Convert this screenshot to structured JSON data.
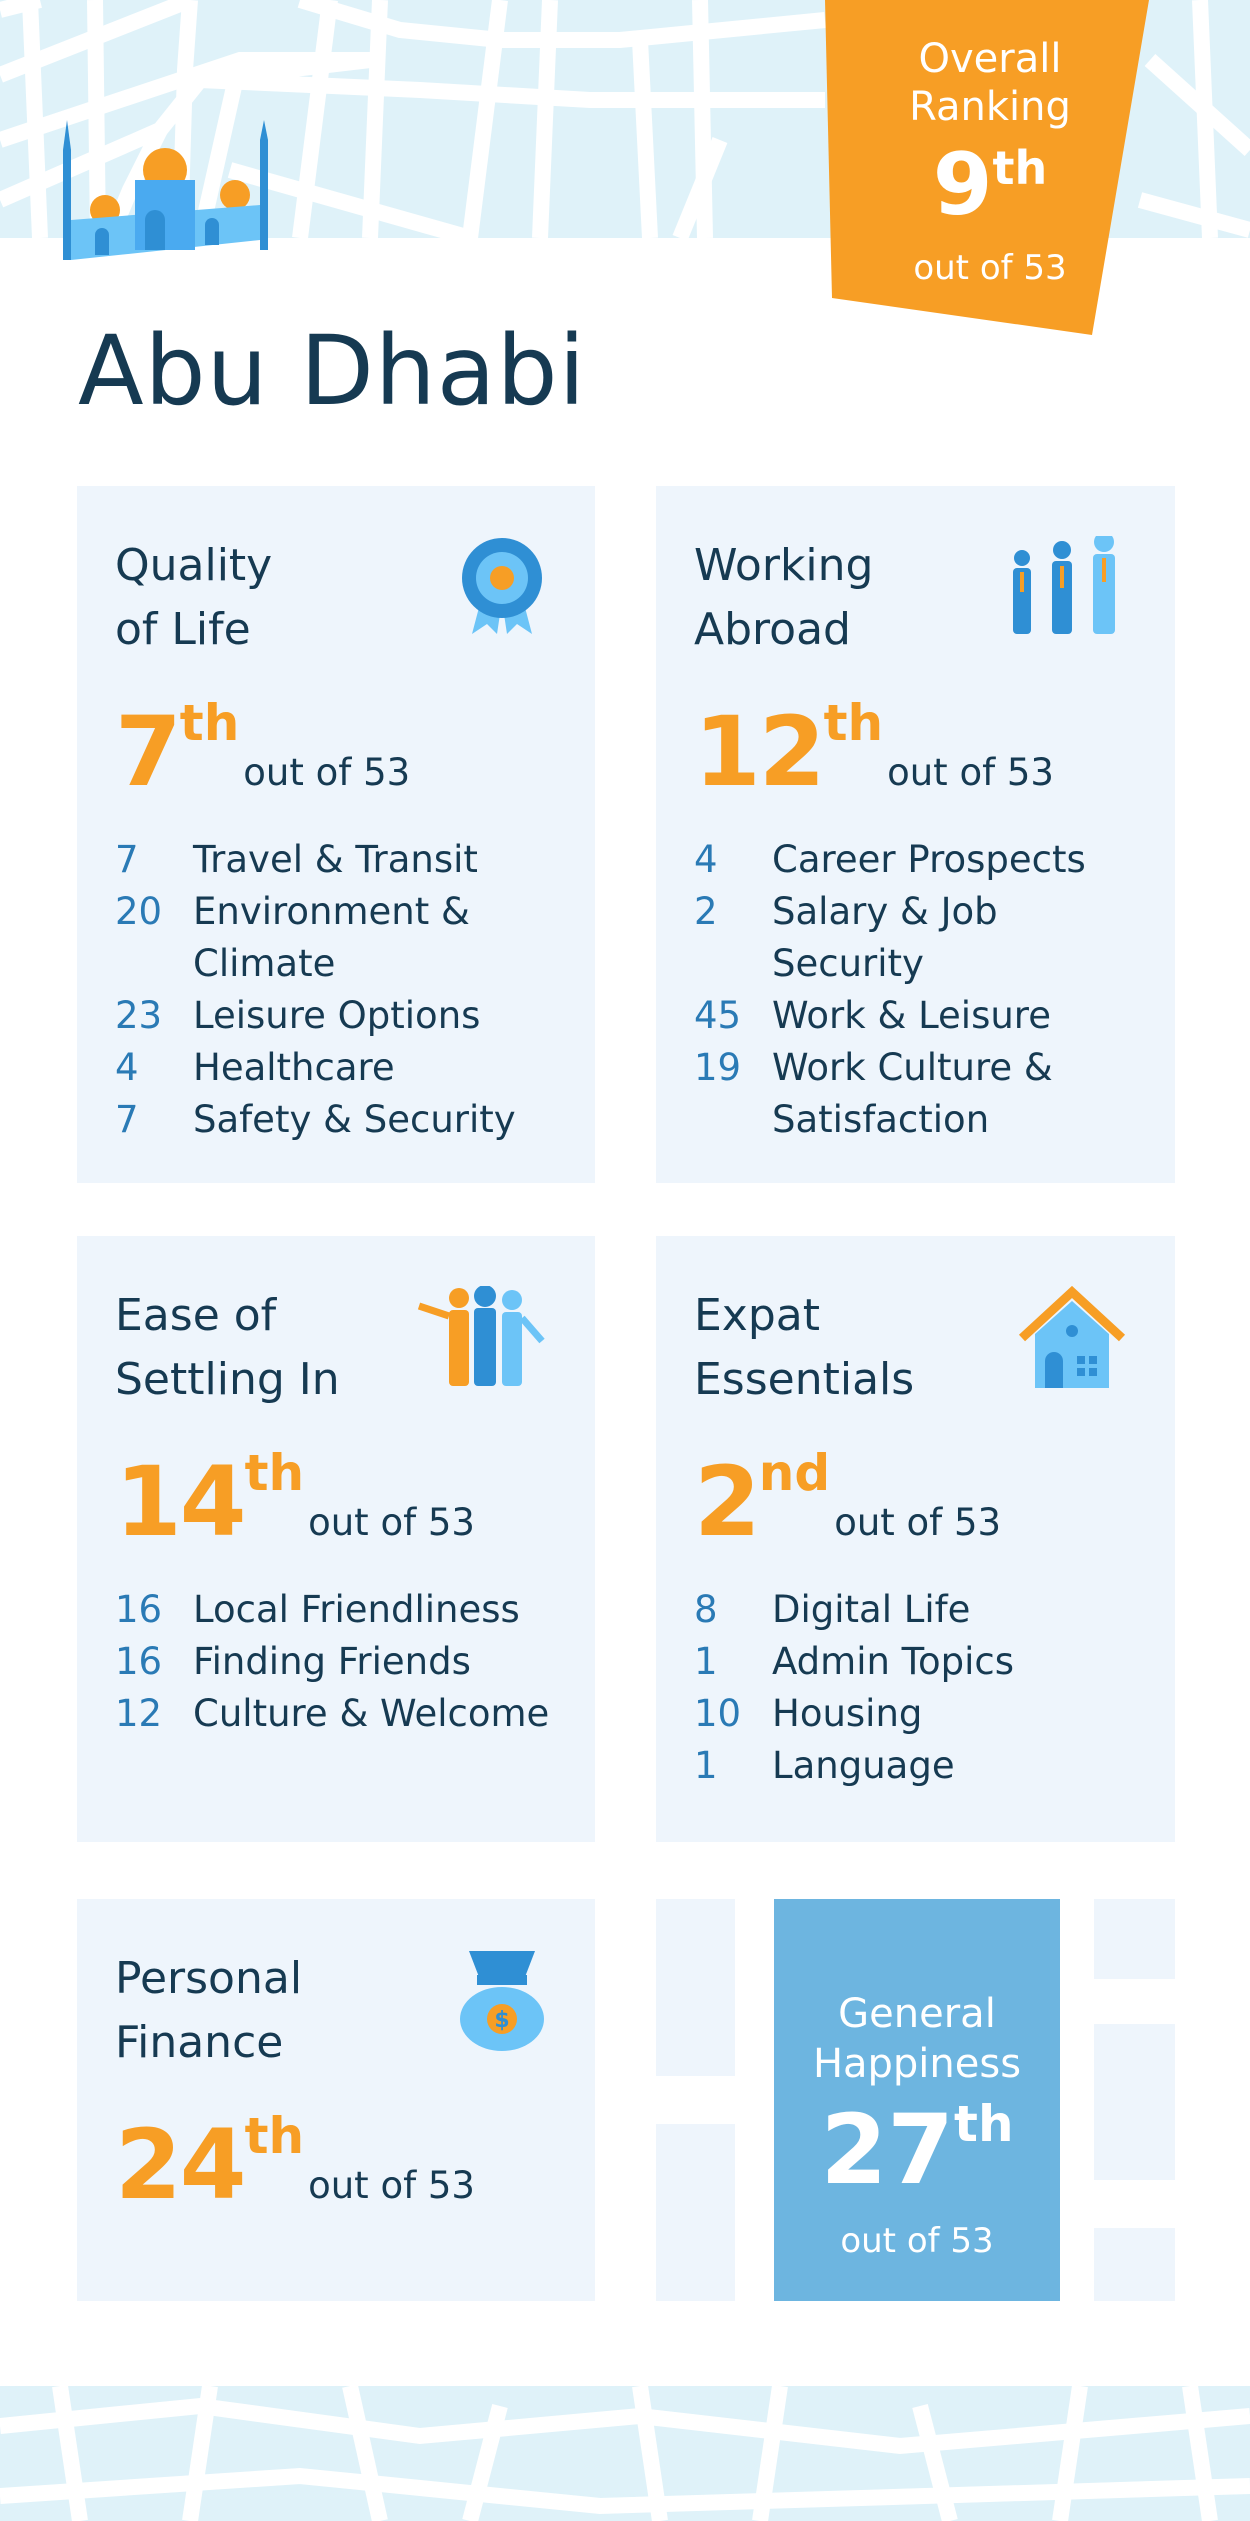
{
  "city": "Abu Dhabi",
  "overall": {
    "label_line1": "Overall",
    "label_line2": "Ranking",
    "rank": "9",
    "suffix": "th",
    "out_of": "out of 53"
  },
  "colors": {
    "orange": "#f79e25",
    "navy": "#163a52",
    "blue": "#2a7ab5",
    "card": "#eef5fc",
    "happiness": "#6db5e0",
    "map": "#dff2f9"
  },
  "cards": [
    {
      "title_line1": "Quality",
      "title_line2": "of Life",
      "icon": "award-rosette-icon",
      "rank": "7",
      "suffix": "th",
      "out_of": "out of 53",
      "items": [
        {
          "n": "7",
          "label": "Travel & Transit"
        },
        {
          "n": "20",
          "label": "Environment & Climate"
        },
        {
          "n": "23",
          "label": "Leisure Options"
        },
        {
          "n": "4",
          "label": "Healthcare"
        },
        {
          "n": "7",
          "label": "Safety & Security"
        }
      ]
    },
    {
      "title_line1": "Working",
      "title_line2": "Abroad",
      "icon": "business-people-icon",
      "rank": "12",
      "suffix": "th",
      "out_of": "out of 53",
      "items": [
        {
          "n": "4",
          "label": "Career Prospects"
        },
        {
          "n": "2",
          "label": "Salary & Job Security"
        },
        {
          "n": "45",
          "label": "Work & Leisure"
        },
        {
          "n": "19",
          "label": "Work Culture & Satisfaction"
        }
      ]
    },
    {
      "title_line1": "Ease of",
      "title_line2": "Settling In",
      "icon": "group-people-icon",
      "rank": "14",
      "suffix": "th",
      "out_of": "out of 53",
      "items": [
        {
          "n": "16",
          "label": "Local Friendliness"
        },
        {
          "n": "16",
          "label": "Finding Friends"
        },
        {
          "n": "12",
          "label": "Culture & Welcome"
        }
      ]
    },
    {
      "title_line1": "Expat",
      "title_line2": "Essentials",
      "icon": "house-icon",
      "rank": "2",
      "suffix": "nd",
      "out_of": "out of 53",
      "items": [
        {
          "n": "8",
          "label": "Digital Life"
        },
        {
          "n": "1",
          "label": "Admin Topics"
        },
        {
          "n": "10",
          "label": "Housing"
        },
        {
          "n": "1",
          "label": "Language"
        }
      ]
    },
    {
      "title_line1": "Personal",
      "title_line2": "Finance",
      "icon": "money-bag-icon",
      "rank": "24",
      "suffix": "th",
      "out_of": "out of 53",
      "items": []
    }
  ],
  "happiness": {
    "label_line1": "General",
    "label_line2": "Happiness",
    "rank": "27",
    "suffix": "th",
    "out_of": "out of 53"
  }
}
